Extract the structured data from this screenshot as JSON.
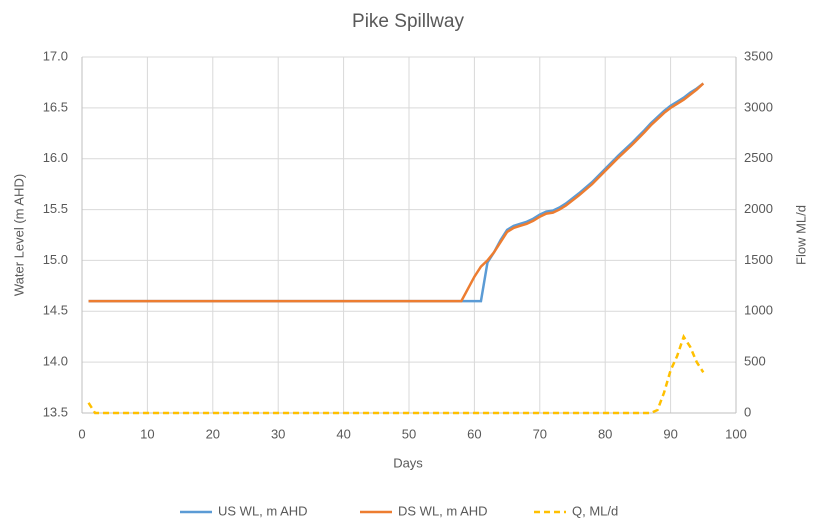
{
  "chart_data": {
    "type": "line",
    "title": "Pike Spillway",
    "x_label": "Days",
    "y_label": "Water Level (m AHD)",
    "y2_label": "Flow ML/d",
    "x": [
      1,
      2,
      58,
      59,
      60,
      61,
      62,
      63,
      64,
      65,
      66,
      67,
      68,
      69,
      70,
      71,
      72,
      73,
      74,
      76,
      78,
      80,
      82,
      84,
      86,
      87,
      88,
      89,
      90,
      91,
      92,
      93,
      94,
      95
    ],
    "series": [
      {
        "name": "US WL, m AHD",
        "color": "#5b9bd5",
        "axis": "y",
        "dash": false,
        "values": [
          14.6,
          14.6,
          14.6,
          14.6,
          14.6,
          14.6,
          14.98,
          15.08,
          15.2,
          15.3,
          15.34,
          15.36,
          15.38,
          15.41,
          15.45,
          15.48,
          15.49,
          15.52,
          15.56,
          15.66,
          15.77,
          15.9,
          16.03,
          16.15,
          16.28,
          16.35,
          16.41,
          16.47,
          16.52,
          16.56,
          16.6,
          16.65,
          16.69,
          16.74
        ]
      },
      {
        "name": "DS WL, m AHD",
        "color": "#ed7d31",
        "axis": "y",
        "dash": false,
        "values": [
          14.6,
          14.6,
          14.6,
          14.72,
          14.84,
          14.94,
          15.0,
          15.08,
          15.18,
          15.28,
          15.32,
          15.34,
          15.36,
          15.39,
          15.43,
          15.46,
          15.47,
          15.5,
          15.54,
          15.64,
          15.75,
          15.88,
          16.01,
          16.13,
          16.26,
          16.33,
          16.39,
          16.45,
          16.5,
          16.54,
          16.58,
          16.63,
          16.68,
          16.74
        ]
      },
      {
        "name": "Q, ML/d",
        "color": "#ffc000",
        "axis": "y2",
        "dash": true,
        "values": [
          100,
          0,
          0,
          0,
          0,
          0,
          0,
          0,
          0,
          0,
          0,
          0,
          0,
          0,
          0,
          0,
          0,
          0,
          0,
          0,
          0,
          0,
          0,
          0,
          0,
          0,
          30,
          200,
          420,
          560,
          750,
          650,
          500,
          400
        ]
      }
    ],
    "xlim": [
      0,
      100
    ],
    "xticks": [
      0,
      10,
      20,
      30,
      40,
      50,
      60,
      70,
      80,
      90,
      100
    ],
    "ylim": [
      13.5,
      17.0
    ],
    "yticks": [
      {
        "value": 13.5,
        "label": "13.5"
      },
      {
        "value": 14.0,
        "label": "14.0"
      },
      {
        "value": 14.5,
        "label": "14.5"
      },
      {
        "value": 15.0,
        "label": "15.0"
      },
      {
        "value": 15.5,
        "label": "15.5"
      },
      {
        "value": 16.0,
        "label": "16.0"
      },
      {
        "value": 16.5,
        "label": "16.5"
      },
      {
        "value": 17.0,
        "label": "17.0"
      }
    ],
    "y2lim": [
      0,
      3500
    ],
    "y2ticks": [
      0,
      500,
      1000,
      1500,
      2000,
      2500,
      3000,
      3500
    ],
    "grid": true,
    "legend": "bottom"
  }
}
